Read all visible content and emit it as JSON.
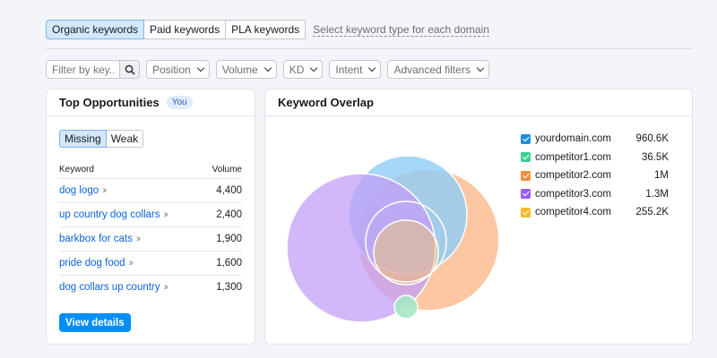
{
  "keyword_tabs": {
    "items": [
      "Organic keywords",
      "Paid keywords",
      "PLA keywords"
    ],
    "active": "Organic keywords",
    "hint": "Select keyword type for each domain"
  },
  "filters": {
    "search_placeholder": "Filter by key...",
    "dropdowns": [
      "Position",
      "Volume",
      "KD",
      "Intent",
      "Advanced filters"
    ]
  },
  "top_opportunities": {
    "title": "Top Opportunities",
    "badge": "You",
    "segments": [
      "Missing",
      "Weak"
    ],
    "active_segment": "Missing",
    "columns": {
      "keyword": "Keyword",
      "volume": "Volume"
    },
    "rows": [
      {
        "keyword": "dog logo",
        "volume": "4,400"
      },
      {
        "keyword": "up country dog collars",
        "volume": "2,400"
      },
      {
        "keyword": "barkbox for cats",
        "volume": "1,900"
      },
      {
        "keyword": "pride dog food",
        "volume": "1,600"
      },
      {
        "keyword": "dog collars up country",
        "volume": "1,300"
      }
    ],
    "details_button": "View details"
  },
  "keyword_overlap": {
    "title": "Keyword Overlap",
    "legend": [
      {
        "domain": "yourdomain.com",
        "value": "960.6K",
        "color": "#1f8dd6"
      },
      {
        "domain": "competitor1.com",
        "value": "36.5K",
        "color": "#3ccf8e"
      },
      {
        "domain": "competitor2.com",
        "value": "1M",
        "color": "#f08c3b"
      },
      {
        "domain": "competitor3.com",
        "value": "1.3M",
        "color": "#9b5cf0"
      },
      {
        "domain": "competitor4.com",
        "value": "255.2K",
        "color": "#f2b82a"
      }
    ]
  },
  "colors": {
    "accent": "#008ff8",
    "link": "#0b62d6",
    "venn_yourdomain": "#8fcdf7",
    "venn_competitor1": "#a6e7c6",
    "venn_competitor2": "#fbb98b",
    "venn_competitor3": "#c39ff7",
    "venn_competitor4": "#f7c665"
  }
}
